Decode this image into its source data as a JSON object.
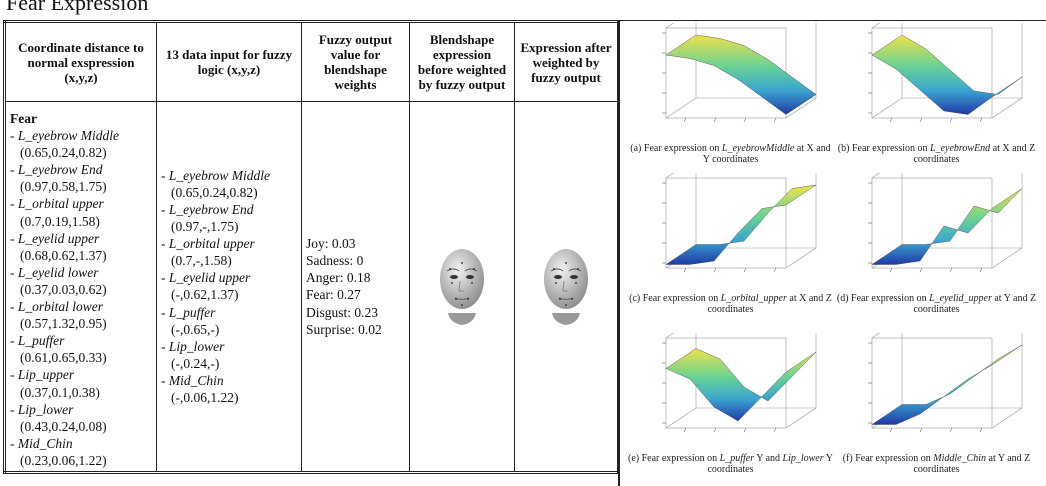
{
  "title": "Fear Expression",
  "table": {
    "headers": [
      "Coordinate distance to normal exspression (x,y,z)",
      "13 data  input for fuzzy logic (x,y,z)",
      "Fuzzy output value for blendshape weights",
      "Blendshape expression before weighted by fuzzy output",
      "Expression after weighted by fuzzy output"
    ],
    "expression": "Fear",
    "distances": [
      {
        "name": "L_eyebrow Middle",
        "coords": "(0.65,0.24,0.82)"
      },
      {
        "name": "L_eyebrow End",
        "coords": "(0.97,0.58,1.75)"
      },
      {
        "name": "L_orbital upper",
        "coords": "(0.7,0.19,1.58)"
      },
      {
        "name": "L_eyelid upper",
        "coords": "(0.68,0.62,1.37)"
      },
      {
        "name": "L_eyelid lower",
        "coords": "(0.37,0.03,0.62)"
      },
      {
        "name": "L_orbital lower",
        "coords": "(0.57,1.32,0.95)"
      },
      {
        "name": "L_puffer",
        "coords": "(0.61,0.65,0.33)"
      },
      {
        "name": "Lip_upper",
        "coords": "(0.37,0.1,0.38)"
      },
      {
        "name": "Lip_lower",
        "coords": "(0.43,0.24,0.08)"
      },
      {
        "name": "Mid_Chin",
        "coords": "(0.23,0.06,1.22)"
      }
    ],
    "inputs": [
      {
        "name": "L_eyebrow Middle",
        "coords": "(0.65,0.24,0.82)"
      },
      {
        "name": "L_eyebrow End",
        "coords": "(0.97,-,1.75)"
      },
      {
        "name": "L_orbital upper",
        "coords": "(0.7,-,1.58)"
      },
      {
        "name": "L_eyelid upper",
        "coords": "(-,0.62,1.37)"
      },
      {
        "name": "L_puffer",
        "coords": "(-,0.65,-)"
      },
      {
        "name": "Lip_lower",
        "coords": "(-,0.24,-)"
      },
      {
        "name": "Mid_Chin",
        "coords": "(-,0.06,1.22)"
      }
    ],
    "fuzzy_output": [
      "Joy: 0.03",
      "Sadness: 0",
      "Anger: 0.18",
      "Fear: 0.27",
      "Disgust: 0.23",
      "Surprise: 0.02"
    ]
  },
  "figures": [
    {
      "caption": [
        {
          "text": "(a) Fear expression on "
        },
        {
          "text": "L_eyebrowMiddle",
          "italic": true
        },
        {
          "text": " at X and Y coordinates"
        }
      ]
    },
    {
      "caption": [
        {
          "text": "(b) Fear expression on "
        },
        {
          "text": "L_eyebrowEnd",
          "italic": true
        },
        {
          "text": " at X and Z coordinates"
        }
      ]
    },
    {
      "caption": [
        {
          "text": "(c) Fear expression on "
        },
        {
          "text": "L_orbital_upper",
          "italic": true
        },
        {
          "text": " at X and Z coordinates"
        }
      ]
    },
    {
      "caption": [
        {
          "text": "(d) Fear expression on "
        },
        {
          "text": "L_eyelid_upper",
          "italic": true
        },
        {
          "text": " at Y and Z coordinates"
        }
      ]
    },
    {
      "caption": [
        {
          "text": "(e) Fear expression on "
        },
        {
          "text": "L_puffer",
          "italic": true
        },
        {
          "text": " Y and "
        },
        {
          "text": "Lip_lower",
          "italic": true
        },
        {
          "text": " Y coordinates"
        }
      ]
    },
    {
      "caption": [
        {
          "text": "(f) Fear expression on "
        },
        {
          "text": "Middle_Chin",
          "italic": true
        },
        {
          "text": " at Y and Z coordinates"
        }
      ]
    }
  ]
}
